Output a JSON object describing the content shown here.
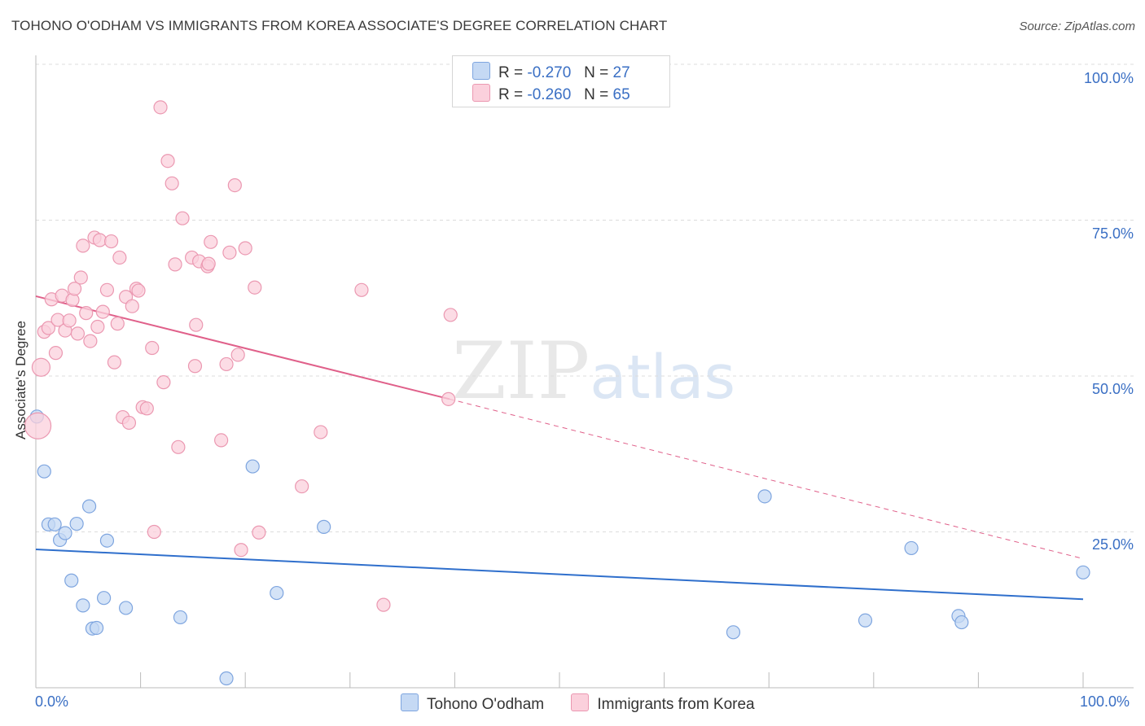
{
  "header": {
    "title": "TOHONO O'ODHAM VS IMMIGRANTS FROM KOREA ASSOCIATE'S DEGREE CORRELATION CHART",
    "source": "Source: ZipAtlas.com"
  },
  "watermark": {
    "zip": "ZIP",
    "atlas": "atlas"
  },
  "legend": {
    "rows": [
      {
        "r_label": "R =",
        "r_value": "-0.270",
        "n_label": "N =",
        "n_value": "27"
      },
      {
        "r_label": "R =",
        "r_value": "-0.260",
        "n_label": "N =",
        "n_value": "65"
      }
    ]
  },
  "axis": {
    "y_title": "Associate's Degree",
    "y_ticks": [
      "100.0%",
      "75.0%",
      "50.0%",
      "25.0%"
    ],
    "x_min_label": "0.0%",
    "x_max_label": "100.0%"
  },
  "series_labels": {
    "blue": "Tohono O'odham",
    "pink": "Immigrants from Korea"
  },
  "colors": {
    "blue": "#7ea5df",
    "blue_fill": "#c5d9f4",
    "blue_line": "#2f6fcc",
    "pink": "#eb98b1",
    "pink_fill": "#fbd0dc",
    "pink_line": "#e0608a"
  },
  "chart_data": {
    "type": "scatter",
    "title": "TOHONO O'ODHAM VS IMMIGRANTS FROM KOREA ASSOCIATE'S DEGREE CORRELATION CHART",
    "xlabel": "",
    "ylabel": "Associate's Degree",
    "xlim": [
      0,
      100
    ],
    "ylim": [
      0,
      100
    ],
    "series": [
      {
        "name": "Tohono O'odham",
        "color": "blue",
        "r": -0.27,
        "n": 27,
        "trend": {
          "x": [
            0,
            100
          ],
          "y": [
            22.2,
            14.2
          ]
        },
        "points": [
          [
            0.1,
            43.5
          ],
          [
            0.8,
            34.7
          ],
          [
            1.2,
            26.2
          ],
          [
            1.8,
            26.2
          ],
          [
            2.3,
            23.7
          ],
          [
            2.8,
            24.8
          ],
          [
            3.4,
            17.2
          ],
          [
            3.9,
            26.3
          ],
          [
            4.5,
            13.2
          ],
          [
            5.1,
            29.1
          ],
          [
            5.4,
            9.5
          ],
          [
            5.8,
            9.6
          ],
          [
            6.5,
            14.4
          ],
          [
            6.8,
            23.6
          ],
          [
            8.6,
            12.8
          ],
          [
            13.8,
            11.3
          ],
          [
            18.2,
            1.5
          ],
          [
            20.7,
            35.5
          ],
          [
            23.0,
            15.2
          ],
          [
            27.5,
            25.8
          ],
          [
            66.6,
            8.9
          ],
          [
            69.6,
            30.7
          ],
          [
            79.2,
            10.8
          ],
          [
            83.6,
            22.4
          ],
          [
            88.1,
            11.5
          ],
          [
            88.4,
            10.5
          ],
          [
            100.0,
            18.5
          ]
        ]
      },
      {
        "name": "Immigrants from Korea",
        "color": "pink",
        "r": -0.26,
        "n": 65,
        "trend": {
          "x": [
            0,
            39.5
          ],
          "y": [
            62.8,
            46.3
          ]
        },
        "trend_dashed": {
          "x": [
            39.5,
            100
          ],
          "y": [
            46.3,
            20.7
          ]
        },
        "points": [
          [
            0.2,
            42.0
          ],
          [
            0.5,
            51.4
          ],
          [
            0.8,
            57.1
          ],
          [
            1.2,
            57.7
          ],
          [
            1.5,
            62.3
          ],
          [
            1.9,
            53.7
          ],
          [
            2.1,
            59.0
          ],
          [
            2.5,
            62.9
          ],
          [
            2.8,
            57.3
          ],
          [
            3.2,
            58.9
          ],
          [
            3.5,
            62.2
          ],
          [
            3.7,
            64.0
          ],
          [
            4.0,
            56.8
          ],
          [
            4.3,
            65.8
          ],
          [
            4.5,
            70.9
          ],
          [
            4.8,
            60.1
          ],
          [
            5.2,
            55.6
          ],
          [
            5.6,
            72.2
          ],
          [
            5.9,
            57.9
          ],
          [
            6.1,
            71.8
          ],
          [
            6.4,
            60.3
          ],
          [
            6.8,
            63.8
          ],
          [
            7.2,
            71.6
          ],
          [
            7.5,
            52.2
          ],
          [
            7.8,
            58.4
          ],
          [
            8.0,
            69.0
          ],
          [
            8.3,
            43.4
          ],
          [
            8.6,
            62.7
          ],
          [
            8.9,
            42.5
          ],
          [
            9.2,
            61.2
          ],
          [
            9.6,
            64.0
          ],
          [
            9.8,
            63.7
          ],
          [
            10.2,
            45.0
          ],
          [
            10.6,
            44.8
          ],
          [
            11.1,
            54.5
          ],
          [
            11.3,
            25.0
          ],
          [
            11.9,
            93.1
          ],
          [
            12.2,
            49.0
          ],
          [
            12.6,
            84.5
          ],
          [
            13.0,
            80.9
          ],
          [
            13.3,
            67.9
          ],
          [
            13.6,
            38.6
          ],
          [
            14.0,
            75.3
          ],
          [
            14.9,
            69.0
          ],
          [
            15.2,
            51.6
          ],
          [
            15.3,
            58.2
          ],
          [
            15.6,
            68.4
          ],
          [
            16.4,
            67.6
          ],
          [
            16.5,
            68.0
          ],
          [
            16.7,
            71.5
          ],
          [
            17.7,
            39.7
          ],
          [
            18.2,
            51.9
          ],
          [
            18.5,
            69.8
          ],
          [
            19.0,
            80.6
          ],
          [
            19.3,
            53.4
          ],
          [
            19.6,
            22.1
          ],
          [
            20.0,
            70.5
          ],
          [
            20.9,
            64.2
          ],
          [
            21.3,
            24.9
          ],
          [
            25.4,
            32.3
          ],
          [
            27.2,
            41.0
          ],
          [
            31.1,
            63.8
          ],
          [
            33.2,
            13.3
          ],
          [
            39.4,
            46.3
          ],
          [
            39.6,
            59.8
          ]
        ]
      }
    ]
  }
}
